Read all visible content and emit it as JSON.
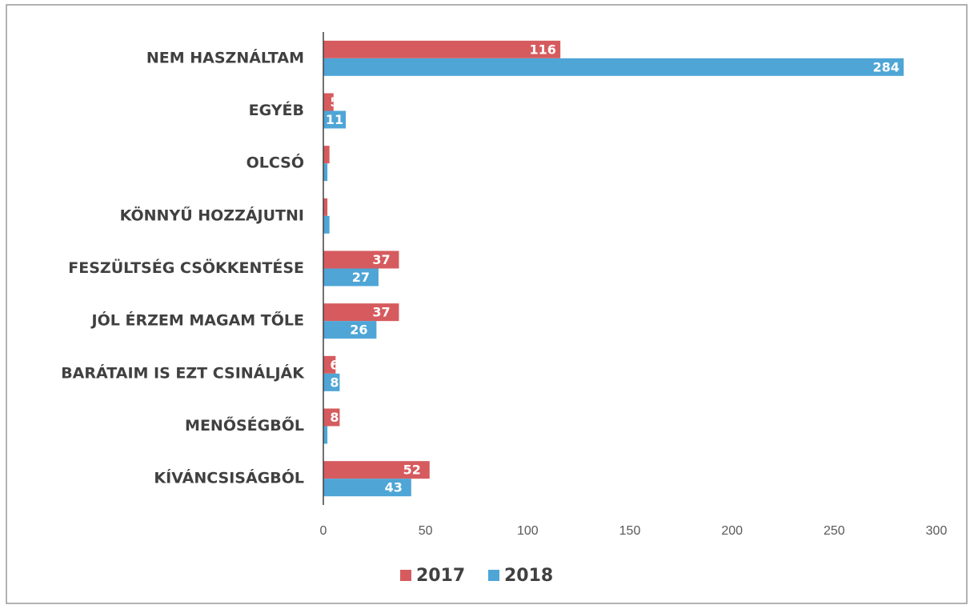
{
  "chart_data": {
    "type": "barh",
    "categories": [
      "NEM HASZNÁLTAM",
      "EGYÉB",
      "OLCSÓ",
      "KÖNNYŰ HOZZÁJUTNI",
      "FESZÜLTSÉG CSÖKKENTÉSE",
      "JÓL ÉRZEM MAGAM TŐLE",
      "BARÁTAIM IS EZT CSINÁLJÁK",
      "MENŐSÉGBŐL",
      "KÍVÁNCSISÁGBÓL"
    ],
    "series": [
      {
        "name": "2017",
        "color": "#d65b5e",
        "values": [
          116,
          5,
          3,
          2,
          37,
          37,
          6,
          8,
          52
        ]
      },
      {
        "name": "2018",
        "color": "#4ea5d6",
        "values": [
          284,
          11,
          2,
          3,
          27,
          26,
          8,
          2,
          43
        ]
      }
    ],
    "xlim": [
      0,
      300
    ],
    "xticks": [
      0,
      50,
      100,
      150,
      200,
      250,
      300
    ],
    "legend": "bottom"
  }
}
